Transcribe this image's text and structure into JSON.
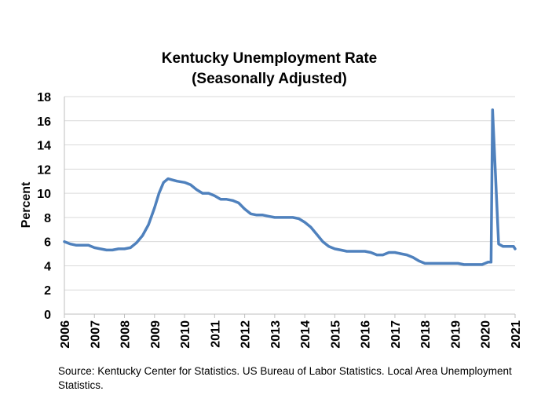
{
  "chart_data": {
    "type": "line",
    "title": [
      "Kentucky Unemployment Rate",
      "(Seasonally Adjusted)"
    ],
    "ylabel": "Percent",
    "xlabel": "",
    "xlim": [
      2006,
      2021
    ],
    "ylim": [
      0,
      18
    ],
    "y_ticks": [
      0,
      2,
      4,
      6,
      8,
      10,
      12,
      14,
      16,
      18
    ],
    "x_ticks": [
      "2006",
      "2007",
      "2008",
      "2009",
      "2010",
      "2011",
      "2012",
      "2013",
      "2014",
      "2015",
      "2016",
      "2017",
      "2018",
      "2019",
      "2020",
      "2021"
    ],
    "grid": "horizontal",
    "legend": "none",
    "series_color": "#4f81bd",
    "series": [
      {
        "points": [
          [
            2006.0,
            6.0
          ],
          [
            2006.2,
            5.8
          ],
          [
            2006.4,
            5.7
          ],
          [
            2006.6,
            5.7
          ],
          [
            2006.8,
            5.7
          ],
          [
            2007.0,
            5.5
          ],
          [
            2007.2,
            5.4
          ],
          [
            2007.4,
            5.3
          ],
          [
            2007.6,
            5.3
          ],
          [
            2007.8,
            5.4
          ],
          [
            2008.0,
            5.4
          ],
          [
            2008.2,
            5.5
          ],
          [
            2008.4,
            5.9
          ],
          [
            2008.6,
            6.5
          ],
          [
            2008.8,
            7.4
          ],
          [
            2009.0,
            8.8
          ],
          [
            2009.15,
            10.0
          ],
          [
            2009.3,
            10.9
          ],
          [
            2009.45,
            11.2
          ],
          [
            2009.6,
            11.1
          ],
          [
            2009.75,
            11.0
          ],
          [
            2010.0,
            10.9
          ],
          [
            2010.2,
            10.7
          ],
          [
            2010.4,
            10.3
          ],
          [
            2010.6,
            10.0
          ],
          [
            2010.8,
            10.0
          ],
          [
            2011.0,
            9.8
          ],
          [
            2011.2,
            9.5
          ],
          [
            2011.4,
            9.5
          ],
          [
            2011.6,
            9.4
          ],
          [
            2011.8,
            9.2
          ],
          [
            2012.0,
            8.7
          ],
          [
            2012.2,
            8.3
          ],
          [
            2012.4,
            8.2
          ],
          [
            2012.6,
            8.2
          ],
          [
            2012.8,
            8.1
          ],
          [
            2013.0,
            8.0
          ],
          [
            2013.3,
            8.0
          ],
          [
            2013.6,
            8.0
          ],
          [
            2013.8,
            7.9
          ],
          [
            2014.0,
            7.6
          ],
          [
            2014.2,
            7.2
          ],
          [
            2014.4,
            6.6
          ],
          [
            2014.6,
            6.0
          ],
          [
            2014.8,
            5.6
          ],
          [
            2015.0,
            5.4
          ],
          [
            2015.2,
            5.3
          ],
          [
            2015.4,
            5.2
          ],
          [
            2015.6,
            5.2
          ],
          [
            2015.8,
            5.2
          ],
          [
            2016.0,
            5.2
          ],
          [
            2016.2,
            5.1
          ],
          [
            2016.4,
            4.9
          ],
          [
            2016.6,
            4.9
          ],
          [
            2016.8,
            5.1
          ],
          [
            2017.0,
            5.1
          ],
          [
            2017.2,
            5.0
          ],
          [
            2017.4,
            4.9
          ],
          [
            2017.6,
            4.7
          ],
          [
            2017.8,
            4.4
          ],
          [
            2018.0,
            4.2
          ],
          [
            2018.3,
            4.2
          ],
          [
            2018.6,
            4.2
          ],
          [
            2018.9,
            4.2
          ],
          [
            2019.1,
            4.2
          ],
          [
            2019.3,
            4.1
          ],
          [
            2019.6,
            4.1
          ],
          [
            2019.9,
            4.1
          ],
          [
            2020.1,
            4.3
          ],
          [
            2020.2,
            4.3
          ],
          [
            2020.25,
            16.9
          ],
          [
            2020.45,
            5.8
          ],
          [
            2020.6,
            5.6
          ],
          [
            2020.8,
            5.6
          ],
          [
            2020.95,
            5.6
          ],
          [
            2021.0,
            5.4
          ]
        ]
      }
    ]
  },
  "source_note": "Source: Kentucky Center for Statistics. US Bureau of Labor Statistics. Local Area Unemployment Statistics."
}
